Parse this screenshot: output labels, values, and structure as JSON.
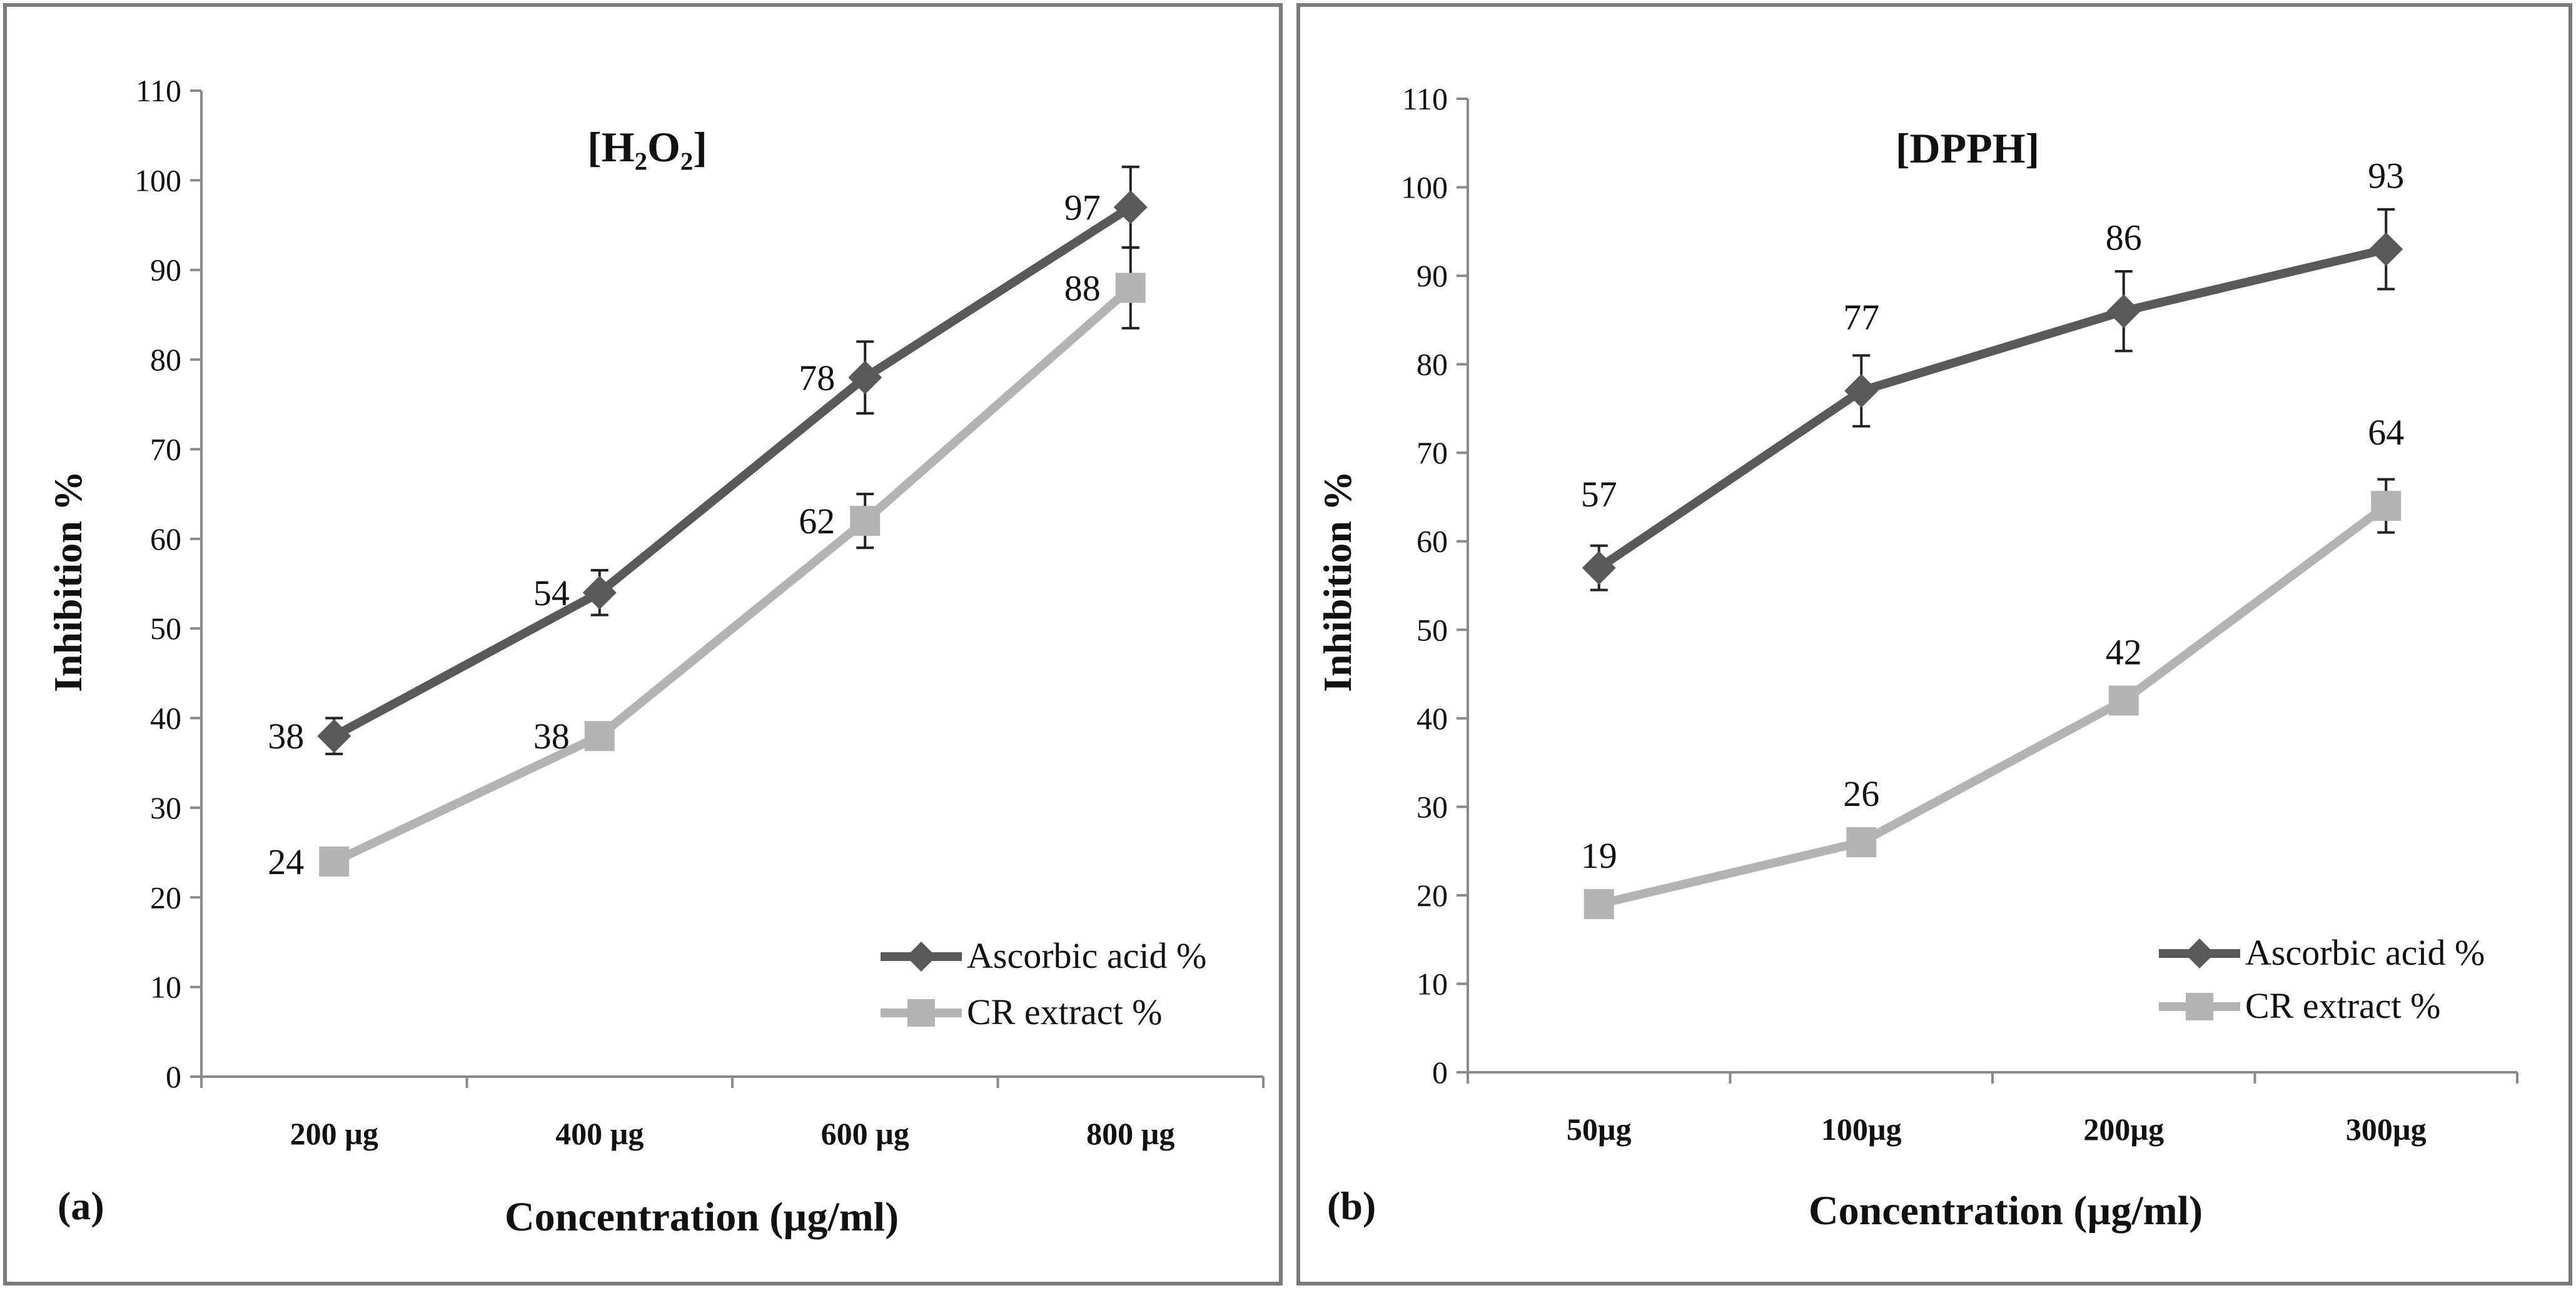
{
  "chart_data": [
    {
      "type": "line",
      "panel_label": "(a)",
      "title": "[H₂O₂]",
      "xlabel": "Concentration (µg/ml)",
      "ylabel": "Inhibition  %",
      "ylim": [
        0,
        110
      ],
      "ytick_step": 10,
      "categories": [
        "200 µg",
        "400 µg",
        "600 µg",
        "800 µg"
      ],
      "series": [
        {
          "name": "Ascorbic acid %",
          "values": [
            38,
            54,
            78,
            97
          ],
          "errors": [
            2,
            2.5,
            4,
            4.5
          ],
          "marker": "diamond",
          "color": "#595959",
          "label_side": "left"
        },
        {
          "name": "CR extract %",
          "values": [
            24,
            38,
            62,
            88
          ],
          "errors": [
            0,
            0,
            3,
            4.5
          ],
          "marker": "square",
          "color": "#b3b3b3",
          "label_side": "left"
        }
      ],
      "legend_position": "bottom-right"
    },
    {
      "type": "line",
      "panel_label": "(b)",
      "title": "[DPPH]",
      "xlabel": "Concentration (µg/ml)",
      "ylabel": "Inhibition  %",
      "ylim": [
        0,
        110
      ],
      "ytick_step": 10,
      "categories": [
        "50µg",
        "100µg",
        "200µg",
        "300µg"
      ],
      "series": [
        {
          "name": "Ascorbic acid %",
          "values": [
            57,
            77,
            86,
            93
          ],
          "errors": [
            2.5,
            4,
            4.5,
            4.5
          ],
          "marker": "diamond",
          "color": "#595959",
          "label_side": "above"
        },
        {
          "name": "CR extract %",
          "values": [
            19,
            26,
            42,
            64
          ],
          "errors": [
            0,
            0,
            0,
            3
          ],
          "marker": "square",
          "color": "#b3b3b3",
          "label_side": "above"
        }
      ],
      "legend_position": "bottom-right"
    }
  ]
}
